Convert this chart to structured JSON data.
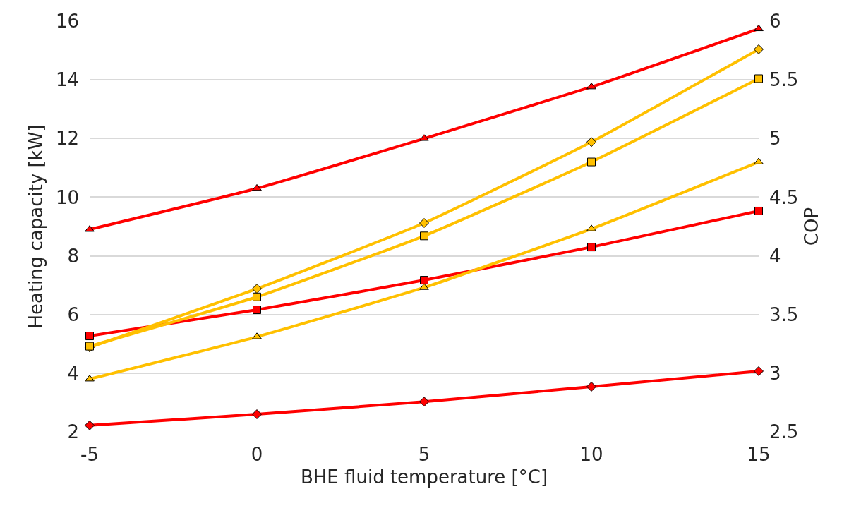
{
  "chart_data": {
    "type": "line",
    "xlabel": "BHE fluid temperature [°C]",
    "ylabel": "Heating capacity [kW]",
    "y2label": "COP",
    "x": [
      -5,
      0,
      5,
      10,
      15
    ],
    "series": [
      {
        "color": "#ff0000",
        "marker": "triangle",
        "values": [
          8.9,
          10.3,
          12.0,
          13.76,
          15.74
        ]
      },
      {
        "color": "#ff0000",
        "marker": "square",
        "values": [
          5.27,
          6.16,
          7.17,
          8.3,
          9.53
        ]
      },
      {
        "color": "#ff0000",
        "marker": "diamond",
        "values": [
          2.22,
          2.6,
          3.03,
          3.54,
          4.07
        ]
      },
      {
        "color": "#ffc000",
        "marker": "diamond",
        "axis": "y2",
        "values": [
          3.22,
          3.72,
          4.28,
          4.97,
          5.76
        ]
      },
      {
        "color": "#ffc000",
        "marker": "square",
        "axis": "y2",
        "values": [
          3.23,
          3.65,
          4.17,
          4.8,
          5.51
        ]
      },
      {
        "color": "#ffc000",
        "marker": "triangle",
        "axis": "y2",
        "values": [
          2.95,
          3.31,
          3.73,
          4.23,
          4.8
        ]
      }
    ],
    "xlim": [
      -5,
      15
    ],
    "xticks": [
      -5,
      0,
      5,
      10,
      15
    ],
    "ylim": [
      2,
      16
    ],
    "yticks": [
      2,
      4,
      6,
      8,
      10,
      12,
      14,
      16
    ],
    "y2lim": [
      2.5,
      6
    ],
    "y2ticks": [
      2.5,
      3,
      3.5,
      4,
      4.5,
      5,
      5.5,
      6
    ],
    "grid": "y",
    "line_style": "solid"
  }
}
